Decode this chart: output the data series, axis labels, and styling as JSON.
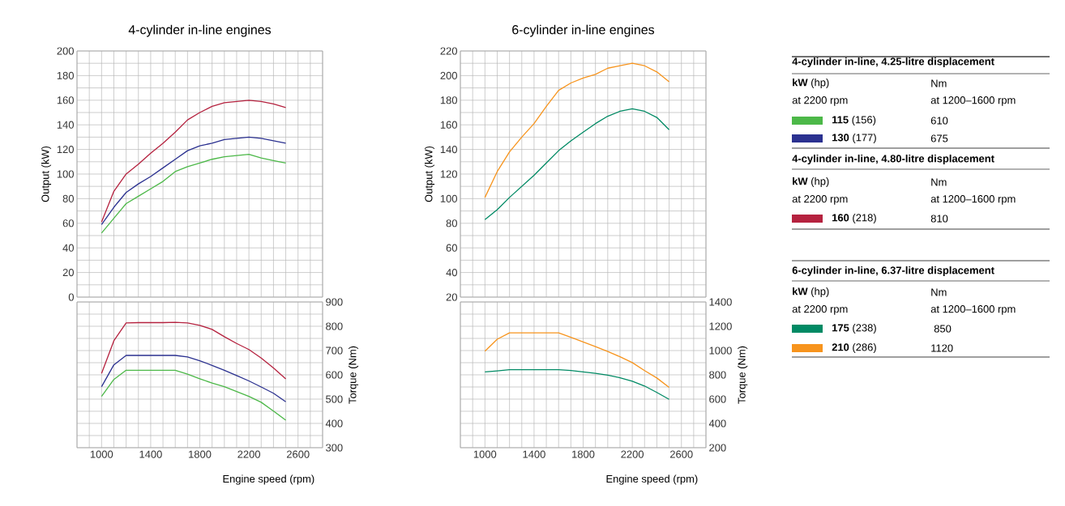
{
  "chart_data": [
    {
      "type": "line",
      "title": "4-cylinder in-line engines",
      "ylabel": "Output (kW)",
      "grid": true,
      "legend": "right",
      "tick_labels": "y",
      "x": [
        1000,
        1100,
        1200,
        1300,
        1400,
        1500,
        1600,
        1700,
        1800,
        1900,
        2000,
        2100,
        2200,
        2300,
        2400,
        2500
      ],
      "xlim": [
        800,
        2800
      ],
      "ylim": [
        0,
        200
      ],
      "xticks": [
        {
          "value": 800,
          "label": null
        },
        {
          "value": 900,
          "label": null
        },
        1000,
        {
          "value": 1100,
          "label": null
        },
        {
          "value": 1200,
          "label": null
        },
        {
          "value": 1300,
          "label": null
        },
        1400,
        {
          "value": 1500,
          "label": null
        },
        {
          "value": 1600,
          "label": null
        },
        {
          "value": 1700,
          "label": null
        },
        1800,
        {
          "value": 1900,
          "label": null
        },
        {
          "value": 2000,
          "label": null
        },
        {
          "value": 2100,
          "label": null
        },
        2200,
        {
          "value": 2300,
          "label": null
        },
        {
          "value": 2400,
          "label": null
        },
        {
          "value": 2500,
          "label": null
        },
        2600,
        {
          "value": 2700,
          "label": null
        },
        {
          "value": 2800,
          "label": null
        }
      ],
      "yticks": [
        0,
        {
          "value": 10,
          "label": null
        },
        20,
        {
          "value": 30,
          "label": null
        },
        40,
        {
          "value": 50,
          "label": null
        },
        60,
        {
          "value": 70,
          "label": null
        },
        80,
        {
          "value": 90,
          "label": null
        },
        100,
        {
          "value": 110,
          "label": null
        },
        120,
        {
          "value": 130,
          "label": null
        },
        140,
        {
          "value": 150,
          "label": null
        },
        160,
        {
          "value": 170,
          "label": null
        },
        180,
        {
          "value": 190,
          "label": null
        },
        200
      ],
      "series": [
        {
          "name": "**115** (156)",
          "color": "#4cb848",
          "values": [
            52,
            64,
            76,
            82,
            88,
            94,
            102,
            106,
            109,
            112,
            114,
            115,
            116,
            113,
            111,
            109
          ]
        },
        {
          "name": "**130** (177)",
          "color": "#2b3190",
          "values": [
            59,
            73,
            85,
            92,
            98,
            105,
            112,
            119,
            123,
            125,
            128,
            129,
            130,
            129,
            127,
            125
          ]
        },
        {
          "name": "**160** (218)",
          "color": "#b5223f",
          "values": [
            61,
            86,
            100,
            108,
            117,
            125,
            134,
            144,
            150,
            155,
            158,
            159,
            160,
            159,
            157,
            154
          ]
        }
      ]
    },
    {
      "type": "line",
      "xlabel": "Engine speed (rpm)",
      "ylabel": "Torque (Nm)",
      "grid": true,
      "x": [
        1000,
        1100,
        1200,
        1300,
        1400,
        1500,
        1600,
        1700,
        1800,
        1900,
        2000,
        2100,
        2200,
        2300,
        2400,
        2500
      ],
      "xlim": [
        800,
        2800
      ],
      "ylim": [
        300,
        900
      ],
      "xticks": [
        {
          "value": 800,
          "label": null
        },
        {
          "value": 900,
          "label": null
        },
        1000,
        {
          "value": 1100,
          "label": null
        },
        {
          "value": 1200,
          "label": null
        },
        {
          "value": 1300,
          "label": null
        },
        1400,
        {
          "value": 1500,
          "label": null
        },
        {
          "value": 1600,
          "label": null
        },
        {
          "value": 1700,
          "label": null
        },
        1800,
        {
          "value": 1900,
          "label": null
        },
        {
          "value": 2000,
          "label": null
        },
        {
          "value": 2100,
          "label": null
        },
        2200,
        {
          "value": 2300,
          "label": null
        },
        {
          "value": 2400,
          "label": null
        },
        {
          "value": 2500,
          "label": null
        },
        2600,
        {
          "value": 2700,
          "label": null
        },
        {
          "value": 2800,
          "label": null
        }
      ],
      "yticks": [
        300,
        {
          "value": 350,
          "label": null
        },
        400,
        {
          "value": 450,
          "label": null
        },
        500,
        {
          "value": 550,
          "label": null
        },
        600,
        {
          "value": 650,
          "label": null
        },
        700,
        {
          "value": 750,
          "label": null
        },
        800,
        {
          "value": 850,
          "label": null
        },
        900
      ],
      "series": [
        {
          "color": "#4cb848",
          "values": [
            511,
            581,
            619,
            619,
            619,
            619,
            619,
            603,
            584,
            566,
            551,
            531,
            511,
            487,
            451,
            413
          ]
        },
        {
          "color": "#2b3190",
          "values": [
            551,
            641,
            680,
            680,
            680,
            680,
            680,
            674,
            658,
            639,
            619,
            597,
            575,
            550,
            524,
            489
          ]
        },
        {
          "color": "#b5223f",
          "values": [
            606,
            740,
            814,
            815,
            815,
            815,
            816,
            814,
            804,
            787,
            757,
            729,
            704,
            669,
            628,
            583
          ]
        }
      ]
    },
    {
      "type": "line",
      "title": "6-cylinder in-line engines",
      "ylabel": "Output (kW)",
      "grid": true,
      "legend": "right",
      "tick_labels": "y",
      "x": [
        1000,
        1100,
        1200,
        1300,
        1400,
        1500,
        1600,
        1700,
        1800,
        1900,
        2000,
        2100,
        2200,
        2300,
        2400,
        2500
      ],
      "xlim": [
        800,
        2800
      ],
      "ylim": [
        20,
        220
      ],
      "xticks": [
        {
          "value": 800,
          "label": null
        },
        {
          "value": 900,
          "label": null
        },
        1000,
        {
          "value": 1100,
          "label": null
        },
        {
          "value": 1200,
          "label": null
        },
        {
          "value": 1300,
          "label": null
        },
        1400,
        {
          "value": 1500,
          "label": null
        },
        {
          "value": 1600,
          "label": null
        },
        {
          "value": 1700,
          "label": null
        },
        1800,
        {
          "value": 1900,
          "label": null
        },
        {
          "value": 2000,
          "label": null
        },
        {
          "value": 2100,
          "label": null
        },
        2200,
        {
          "value": 2300,
          "label": null
        },
        {
          "value": 2400,
          "label": null
        },
        {
          "value": 2500,
          "label": null
        },
        2600,
        {
          "value": 2700,
          "label": null
        },
        {
          "value": 2800,
          "label": null
        }
      ],
      "yticks": [
        20,
        {
          "value": 30,
          "label": null
        },
        40,
        {
          "value": 50,
          "label": null
        },
        60,
        {
          "value": 70,
          "label": null
        },
        80,
        {
          "value": 90,
          "label": null
        },
        100,
        {
          "value": 110,
          "label": null
        },
        120,
        {
          "value": 130,
          "label": null
        },
        140,
        {
          "value": 150,
          "label": null
        },
        160,
        {
          "value": 170,
          "label": null
        },
        180,
        {
          "value": 190,
          "label": null
        },
        200,
        {
          "value": 210,
          "label": null
        },
        220
      ],
      "series": [
        {
          "name": "**175** (238)",
          "color": "#008a64",
          "values": [
            83,
            91,
            101,
            110,
            119,
            129,
            139,
            147,
            154,
            161,
            167,
            171,
            173,
            171,
            166,
            156
          ]
        },
        {
          "name": "**210** (286)",
          "color": "#f7941d",
          "values": [
            101,
            122,
            138,
            150,
            161,
            175,
            188,
            194,
            198,
            201,
            206,
            208,
            210,
            208,
            203,
            195
          ]
        }
      ]
    },
    {
      "type": "line",
      "xlabel": "Engine speed (rpm)",
      "ylabel": "Torque (Nm)",
      "grid": true,
      "x": [
        1000,
        1100,
        1200,
        1300,
        1400,
        1500,
        1600,
        1700,
        1800,
        1900,
        2000,
        2100,
        2200,
        2300,
        2400,
        2500
      ],
      "xlim": [
        800,
        2800
      ],
      "ylim": [
        200,
        1400
      ],
      "xticks": [
        {
          "value": 800,
          "label": null
        },
        {
          "value": 900,
          "label": null
        },
        1000,
        {
          "value": 1100,
          "label": null
        },
        {
          "value": 1200,
          "label": null
        },
        {
          "value": 1300,
          "label": null
        },
        1400,
        {
          "value": 1500,
          "label": null
        },
        {
          "value": 1600,
          "label": null
        },
        {
          "value": 1700,
          "label": null
        },
        1800,
        {
          "value": 1900,
          "label": null
        },
        {
          "value": 2000,
          "label": null
        },
        {
          "value": 2100,
          "label": null
        },
        2200,
        {
          "value": 2300,
          "label": null
        },
        {
          "value": 2400,
          "label": null
        },
        {
          "value": 2500,
          "label": null
        },
        2600,
        {
          "value": 2700,
          "label": null
        },
        {
          "value": 2800,
          "label": null
        }
      ],
      "yticks": [
        200,
        {
          "value": 300,
          "label": null
        },
        400,
        {
          "value": 500,
          "label": null
        },
        600,
        {
          "value": 700,
          "label": null
        },
        800,
        {
          "value": 900,
          "label": null
        },
        1000,
        {
          "value": 1100,
          "label": null
        },
        1200,
        {
          "value": 1300,
          "label": null
        },
        1400
      ],
      "series": [
        {
          "color": "#008a64",
          "values": [
            824,
            833,
            842,
            842,
            842,
            842,
            842,
            836,
            824,
            813,
            798,
            776,
            747,
            708,
            655,
            598
          ]
        },
        {
          "color": "#f7941d",
          "values": [
            995,
            1093,
            1146,
            1146,
            1146,
            1146,
            1146,
            1109,
            1071,
            1032,
            993,
            949,
            901,
            835,
            774,
            697
          ]
        }
      ]
    },
    {
      "type": "other",
      "annotations": [
        "4-cylinder in-line, 4.25-litre displacement",
        "**kW** (hp)",
        "Nm",
        "at 2200 rpm",
        "at 1200–1600 rpm",
        "610",
        "675",
        "4-cylinder in-line, 4.80-litre displacement",
        "**kW** (hp)",
        "Nm",
        "at 2200 rpm",
        "at 1200–1600 rpm",
        "810",
        "6-cylinder in-line, 6.37-litre displacement",
        "**kW** (hp)",
        "Nm",
        "at 2200 rpm",
        "at 1200–1600 rpm",
        "850",
        "1120"
      ]
    }
  ]
}
